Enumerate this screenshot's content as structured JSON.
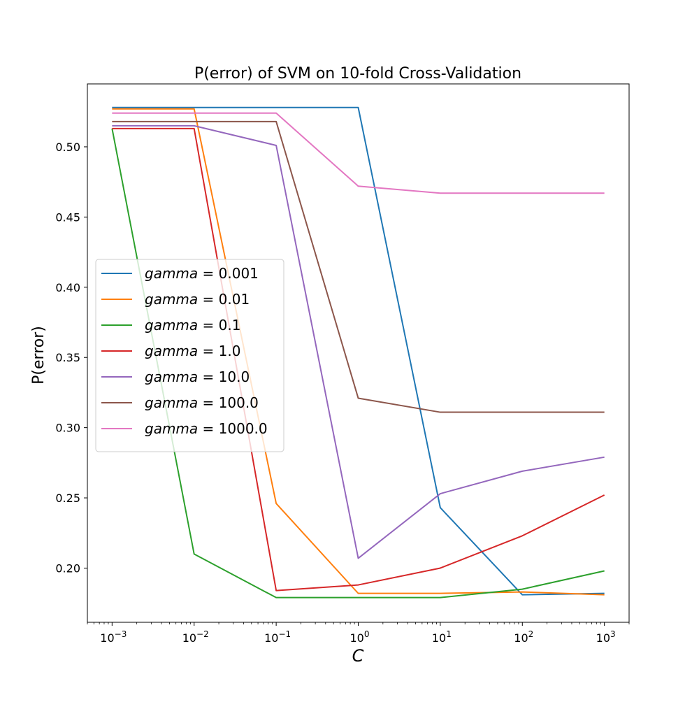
{
  "chart_data": {
    "type": "line",
    "title": "P(error) of SVM on 10-fold Cross-Validation",
    "xlabel": "C",
    "ylabel": "P(error)",
    "xscale": "log",
    "x": [
      0.001,
      0.01,
      0.1,
      1,
      10,
      100,
      1000
    ],
    "x_tick_labels": [
      {
        "base": "10",
        "exp": "−3"
      },
      {
        "base": "10",
        "exp": "−2"
      },
      {
        "base": "10",
        "exp": "−1"
      },
      {
        "base": "10",
        "exp": "0"
      },
      {
        "base": "10",
        "exp": "1"
      },
      {
        "base": "10",
        "exp": "2"
      },
      {
        "base": "10",
        "exp": "3"
      }
    ],
    "xlim": [
      0.0005,
      2000
    ],
    "ylim": [
      0.1614,
      0.5448
    ],
    "y_ticks": [
      0.2,
      0.25,
      0.3,
      0.35,
      0.4,
      0.45,
      0.5
    ],
    "y_tick_labels": [
      "0.20",
      "0.25",
      "0.30",
      "0.35",
      "0.40",
      "0.45",
      "0.50"
    ],
    "grid": false,
    "legend_position": "center-left",
    "series": [
      {
        "name": "gamma = 0.001",
        "label_var": "gamma",
        "label_value": "0.001",
        "color": "#1f77b4",
        "values": [
          0.528,
          0.528,
          0.528,
          0.528,
          0.243,
          0.181,
          0.182
        ]
      },
      {
        "name": "gamma = 0.01",
        "label_var": "gamma",
        "label_value": "0.01",
        "color": "#ff7f0e",
        "values": [
          0.527,
          0.527,
          0.246,
          0.182,
          0.182,
          0.183,
          0.181
        ]
      },
      {
        "name": "gamma = 0.1",
        "label_var": "gamma",
        "label_value": "0.1",
        "color": "#2ca02c",
        "values": [
          0.513,
          0.21,
          0.179,
          0.179,
          0.179,
          0.185,
          0.198
        ]
      },
      {
        "name": "gamma = 1.0",
        "label_var": "gamma",
        "label_value": "1.0",
        "color": "#d62728",
        "values": [
          0.513,
          0.513,
          0.184,
          0.188,
          0.2,
          0.223,
          0.252
        ]
      },
      {
        "name": "gamma = 10.0",
        "label_var": "gamma",
        "label_value": "10.0",
        "color": "#9467bd",
        "values": [
          0.515,
          0.515,
          0.501,
          0.207,
          0.253,
          0.269,
          0.279
        ]
      },
      {
        "name": "gamma = 100.0",
        "label_var": "gamma",
        "label_value": "100.0",
        "color": "#8c564b",
        "values": [
          0.518,
          0.518,
          0.518,
          0.321,
          0.311,
          0.311,
          0.311
        ]
      },
      {
        "name": "gamma = 1000.0",
        "label_var": "gamma",
        "label_value": "1000.0",
        "color": "#e377c2",
        "values": [
          0.524,
          0.524,
          0.524,
          0.472,
          0.467,
          0.467,
          0.467
        ]
      }
    ]
  }
}
